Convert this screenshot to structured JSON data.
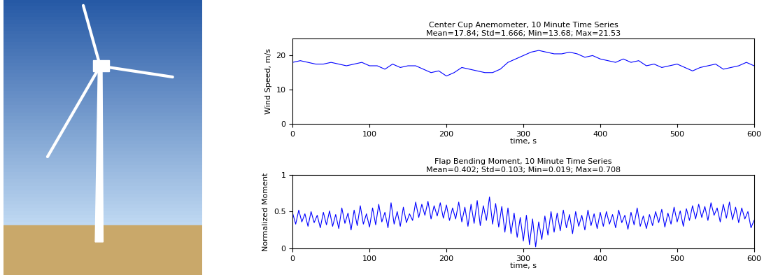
{
  "chart_data": [
    {
      "type": "line",
      "title": "Center Cup Anemometer, 10 Minute Time Series\nMean=17.84; Std=1.666; Min=13.68; Max=21.53",
      "x_label": "time, s",
      "y_label": "Wind Speed, m/s",
      "x": [
        0,
        10,
        20,
        30,
        40,
        50,
        60,
        70,
        80,
        90,
        100,
        110,
        120,
        130,
        140,
        150,
        160,
        170,
        180,
        190,
        200,
        210,
        220,
        230,
        240,
        250,
        260,
        270,
        280,
        290,
        300,
        310,
        320,
        330,
        340,
        350,
        360,
        370,
        380,
        390,
        400,
        410,
        420,
        430,
        440,
        450,
        460,
        470,
        480,
        490,
        500,
        510,
        520,
        530,
        540,
        550,
        560,
        570,
        580,
        590,
        600
      ],
      "values": [
        18,
        18.5,
        18,
        17.5,
        17.5,
        18,
        17.5,
        17,
        17.5,
        18,
        17,
        17,
        16,
        17.5,
        16.5,
        17,
        17,
        16,
        15,
        15.5,
        14,
        15,
        16.5,
        16,
        15.5,
        15,
        15,
        16,
        18,
        19,
        20,
        21,
        21.5,
        21,
        20.5,
        20.5,
        21,
        20.5,
        19.5,
        20,
        19,
        18.5,
        18,
        19,
        18,
        18.5,
        17,
        17.5,
        16.5,
        17,
        17.5,
        16.5,
        15.5,
        16.5,
        17,
        17.5,
        16,
        16.5,
        17,
        18,
        17
      ],
      "color": "#0000ff",
      "xlim": [
        0,
        600
      ],
      "xticks": [
        0,
        100,
        200,
        300,
        400,
        500,
        600
      ],
      "ylim": [
        0,
        25
      ],
      "yticks": [
        0,
        10,
        20
      ]
    },
    {
      "type": "line",
      "title": "Flap Bending Moment, 10 Minute Time Series\nMean=0.402; Std=0.103; Min=0.019; Max=0.708",
      "x_label": "time, s",
      "y_label": "Normalized Moment",
      "x": [
        0,
        4,
        8,
        12,
        16,
        20,
        24,
        28,
        32,
        36,
        40,
        44,
        48,
        52,
        56,
        60,
        64,
        68,
        72,
        76,
        80,
        84,
        88,
        92,
        96,
        100,
        104,
        108,
        112,
        116,
        120,
        124,
        128,
        132,
        136,
        140,
        144,
        148,
        152,
        156,
        160,
        164,
        168,
        172,
        176,
        180,
        184,
        188,
        192,
        196,
        200,
        204,
        208,
        212,
        216,
        220,
        224,
        228,
        232,
        236,
        240,
        244,
        248,
        252,
        256,
        260,
        264,
        268,
        272,
        276,
        280,
        284,
        288,
        292,
        296,
        300,
        304,
        308,
        312,
        316,
        320,
        324,
        328,
        332,
        336,
        340,
        344,
        348,
        352,
        356,
        360,
        364,
        368,
        372,
        376,
        380,
        384,
        388,
        392,
        396,
        400,
        404,
        408,
        412,
        416,
        420,
        424,
        428,
        432,
        436,
        440,
        444,
        448,
        452,
        456,
        460,
        464,
        468,
        472,
        476,
        480,
        484,
        488,
        492,
        496,
        500,
        504,
        508,
        512,
        516,
        520,
        524,
        528,
        532,
        536,
        540,
        544,
        548,
        552,
        556,
        560,
        564,
        568,
        572,
        576,
        580,
        584,
        588,
        592,
        596,
        600
      ],
      "values": [
        0.48,
        0.33,
        0.52,
        0.36,
        0.47,
        0.3,
        0.5,
        0.35,
        0.45,
        0.28,
        0.49,
        0.32,
        0.51,
        0.3,
        0.46,
        0.27,
        0.55,
        0.34,
        0.48,
        0.25,
        0.52,
        0.31,
        0.58,
        0.33,
        0.47,
        0.29,
        0.55,
        0.32,
        0.6,
        0.36,
        0.49,
        0.28,
        0.62,
        0.33,
        0.5,
        0.3,
        0.56,
        0.35,
        0.47,
        0.38,
        0.63,
        0.42,
        0.6,
        0.45,
        0.64,
        0.4,
        0.58,
        0.44,
        0.62,
        0.41,
        0.59,
        0.38,
        0.55,
        0.4,
        0.63,
        0.36,
        0.56,
        0.3,
        0.6,
        0.34,
        0.65,
        0.31,
        0.58,
        0.38,
        0.7,
        0.33,
        0.61,
        0.29,
        0.57,
        0.22,
        0.55,
        0.2,
        0.48,
        0.15,
        0.42,
        0.1,
        0.45,
        0.05,
        0.4,
        0.02,
        0.36,
        0.12,
        0.44,
        0.18,
        0.5,
        0.22,
        0.48,
        0.24,
        0.52,
        0.28,
        0.46,
        0.2,
        0.5,
        0.3,
        0.45,
        0.25,
        0.52,
        0.31,
        0.47,
        0.27,
        0.49,
        0.3,
        0.5,
        0.33,
        0.46,
        0.28,
        0.52,
        0.35,
        0.45,
        0.26,
        0.49,
        0.32,
        0.55,
        0.3,
        0.44,
        0.27,
        0.46,
        0.31,
        0.5,
        0.35,
        0.53,
        0.29,
        0.48,
        0.33,
        0.56,
        0.36,
        0.51,
        0.3,
        0.54,
        0.38,
        0.58,
        0.4,
        0.6,
        0.42,
        0.57,
        0.38,
        0.62,
        0.45,
        0.55,
        0.36,
        0.6,
        0.41,
        0.63,
        0.39,
        0.56,
        0.35,
        0.55,
        0.4,
        0.5,
        0.28,
        0.38
      ],
      "color": "#0000ff",
      "xlim": [
        0,
        600
      ],
      "xticks": [
        0,
        100,
        200,
        300,
        400,
        500,
        600
      ],
      "ylim": [
        0,
        1
      ],
      "yticks": [
        0,
        0.5,
        1
      ]
    }
  ]
}
